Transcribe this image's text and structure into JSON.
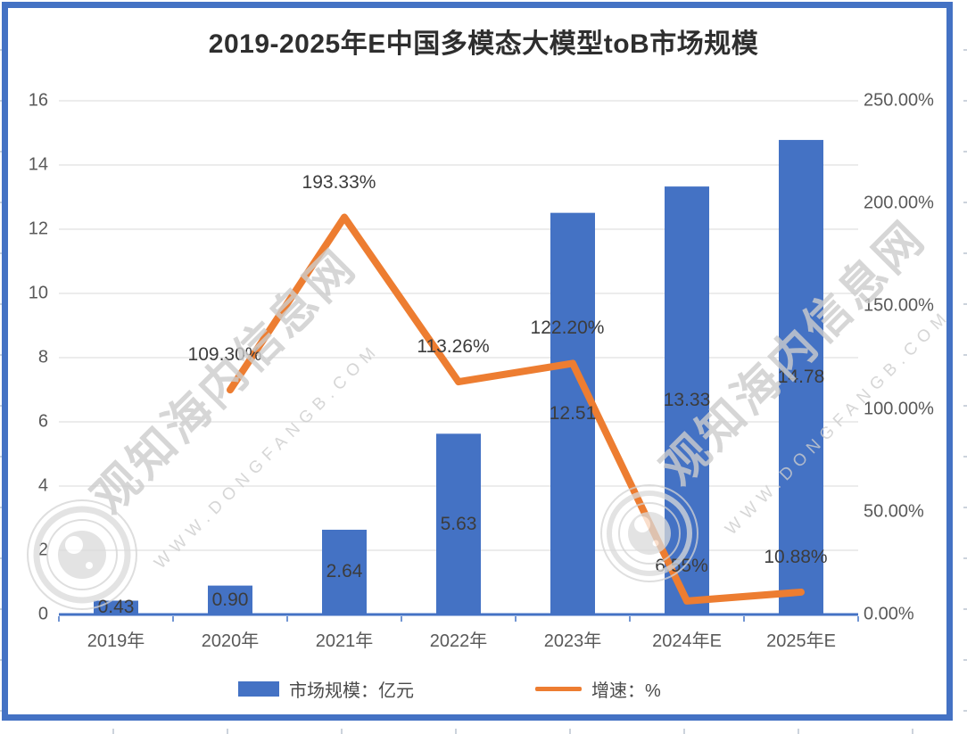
{
  "chart_data": {
    "type": "bar+line",
    "title": "2019-2025年E中国多模态大模型toB市场规模",
    "categories": [
      "2019年",
      "2020年",
      "2021年",
      "2022年",
      "2023年",
      "2024年E",
      "2025年E"
    ],
    "series": [
      {
        "name": "市场规模：亿元",
        "type": "bar",
        "axis": "left",
        "values": [
          0.43,
          0.9,
          2.64,
          5.63,
          12.51,
          13.33,
          14.78
        ],
        "labels": [
          "0.43",
          "0.90",
          "2.64",
          "5.63",
          "12.51",
          "13.33",
          "14.78"
        ]
      },
      {
        "name": "增速：%",
        "type": "line",
        "axis": "right",
        "values": [
          null,
          109.3,
          193.33,
          113.26,
          122.2,
          6.55,
          10.88
        ],
        "labels": [
          null,
          "109.30%",
          "193.33%",
          "113.26%",
          "122.20%",
          "6.55%",
          "10.88%"
        ]
      }
    ],
    "axes": {
      "left": {
        "min": 0,
        "max": 16,
        "step": 2,
        "tick_labels": [
          "0",
          "2",
          "4",
          "6",
          "8",
          "10",
          "12",
          "14",
          "16"
        ]
      },
      "right": {
        "min": 0,
        "max": 250,
        "step": 50,
        "tick_labels": [
          "0.00%",
          "50.00%",
          "100.00%",
          "150.00%",
          "200.00%",
          "250.00%"
        ]
      }
    },
    "grid": "horizontal",
    "legend_position": "bottom"
  },
  "watermark": {
    "main": "观知海内信息网",
    "sub": "WWW.DONGFANGB.COM"
  },
  "colors": {
    "bar": "#4472C4",
    "line": "#ED7D31",
    "axis_line": "#4472C4",
    "gridline": "#D9D9D9",
    "frame": "#4472C4"
  }
}
